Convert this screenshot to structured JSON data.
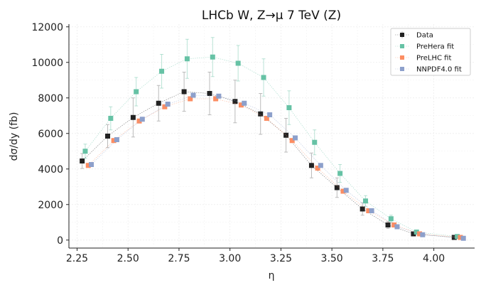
{
  "chart_data": {
    "type": "scatter",
    "title": "LHCb W, Z→μ 7 TeV (Z)",
    "xlabel": "η",
    "ylabel": "dσ/dy (fb)",
    "xlim": [
      2.21,
      4.2
    ],
    "ylim": [
      -450,
      12150
    ],
    "xticks": [
      2.25,
      2.5,
      2.75,
      3.0,
      3.25,
      3.5,
      3.75,
      4.0
    ],
    "xtick_labels": [
      "2.25",
      "2.50",
      "2.75",
      "3.00",
      "3.25",
      "3.50",
      "3.75",
      "4.00"
    ],
    "yticks": [
      0,
      2000,
      4000,
      6000,
      8000,
      10000,
      12000
    ],
    "ytick_labels": [
      "0",
      "2000",
      "4000",
      "6000",
      "8000",
      "10000",
      "12000"
    ],
    "grid": true,
    "legend_position": "top-right",
    "series": [
      {
        "name": "Data",
        "color": "#222222",
        "x": [
          2.275,
          2.4,
          2.525,
          2.65,
          2.775,
          2.9,
          3.025,
          3.15,
          3.275,
          3.4,
          3.525,
          3.65,
          3.775,
          3.9,
          4.1
        ],
        "y": [
          4450,
          5850,
          6900,
          7700,
          8350,
          8250,
          7800,
          7100,
          5900,
          4200,
          2950,
          1750,
          850,
          350,
          150
        ],
        "err": [
          420,
          650,
          1100,
          1000,
          1100,
          1200,
          1200,
          1150,
          950,
          700,
          550,
          350,
          200,
          100,
          60
        ]
      },
      {
        "name": "PreHera fit",
        "color": "#66c2a5",
        "x": [
          2.29,
          2.415,
          2.54,
          2.665,
          2.79,
          2.915,
          3.04,
          3.165,
          3.29,
          3.415,
          3.54,
          3.665,
          3.79,
          3.915,
          4.115
        ],
        "y": [
          5000,
          6850,
          8350,
          9500,
          10200,
          10300,
          9950,
          9150,
          7450,
          5500,
          3750,
          2200,
          1200,
          450,
          200
        ],
        "err": [
          400,
          650,
          800,
          950,
          1100,
          1100,
          1000,
          1050,
          950,
          700,
          500,
          300,
          200,
          100,
          60
        ]
      },
      {
        "name": "PreLHC fit",
        "color": "#fc8d62",
        "x": [
          2.305,
          2.43,
          2.555,
          2.68,
          2.805,
          2.93,
          3.055,
          3.18,
          3.305,
          3.43,
          3.555,
          3.68,
          3.805,
          3.93,
          4.13
        ],
        "y": [
          4200,
          5600,
          6700,
          7500,
          7950,
          7950,
          7600,
          6850,
          5600,
          4050,
          2750,
          1650,
          850,
          350,
          150
        ],
        "err": [
          0,
          0,
          0,
          0,
          0,
          0,
          0,
          0,
          0,
          0,
          0,
          0,
          0,
          0,
          0
        ]
      },
      {
        "name": "NNPDF4.0 fit",
        "color": "#8da0cb",
        "x": [
          2.32,
          2.445,
          2.57,
          2.695,
          2.82,
          2.945,
          3.07,
          3.195,
          3.32,
          3.445,
          3.57,
          3.695,
          3.82,
          3.945,
          4.145
        ],
        "y": [
          4250,
          5650,
          6800,
          7650,
          8150,
          8100,
          7700,
          7050,
          5750,
          4200,
          2800,
          1650,
          750,
          300,
          100
        ],
        "err": [
          0,
          0,
          0,
          0,
          0,
          0,
          0,
          0,
          0,
          0,
          0,
          0,
          0,
          0,
          0
        ]
      }
    ]
  }
}
